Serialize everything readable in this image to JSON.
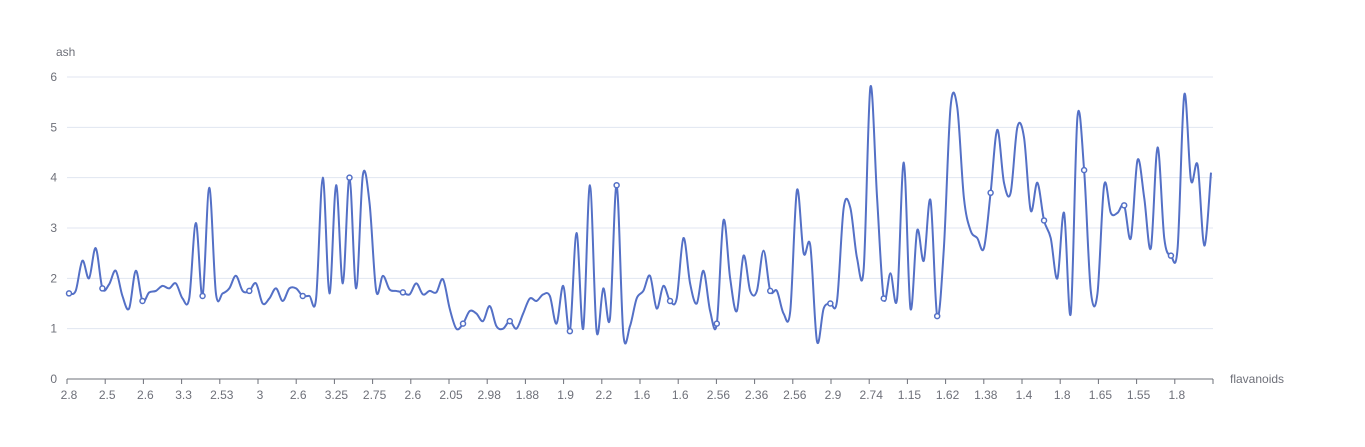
{
  "chart_data": {
    "type": "line",
    "smooth": true,
    "xlabel": "flavanoids",
    "ylabel": "ash",
    "ylim": [
      0,
      6
    ],
    "y_ticks": [
      0,
      1,
      2,
      3,
      4,
      5,
      6
    ],
    "x_tick_labels": [
      "2.8",
      "2.5",
      "2.6",
      "3.3",
      "2.53",
      "3",
      "2.6",
      "3.25",
      "2.75",
      "2.6",
      "2.05",
      "2.98",
      "1.88",
      "1.9",
      "2.2",
      "1.6",
      "1.6",
      "2.56",
      "2.36",
      "2.56",
      "2.9",
      "2.74",
      "1.15",
      "1.62",
      "1.38",
      "1.4",
      "1.8",
      "1.65",
      "1.55",
      "1.8"
    ],
    "grid": true,
    "colors": {
      "series": "#5470c6",
      "grid": "#e0e6f1",
      "axis": "#6e7079"
    },
    "series": [
      {
        "values": [
          1.7,
          1.75,
          2.35,
          2.0,
          2.6,
          1.8,
          1.88,
          2.15,
          1.65,
          1.4,
          2.15,
          1.55,
          1.72,
          1.75,
          1.85,
          1.8,
          1.9,
          1.6,
          1.6,
          3.1,
          1.65,
          3.8,
          1.7,
          1.7,
          1.8,
          2.05,
          1.75,
          1.75,
          1.9,
          1.5,
          1.6,
          1.8,
          1.55,
          1.8,
          1.8,
          1.65,
          1.65,
          1.6,
          4.0,
          1.7,
          3.85,
          1.9,
          4.0,
          1.8,
          4.05,
          3.5,
          1.75,
          2.05,
          1.78,
          1.75,
          1.72,
          1.68,
          1.9,
          1.68,
          1.75,
          1.72,
          1.98,
          1.4,
          1.0,
          1.1,
          1.35,
          1.3,
          1.15,
          1.45,
          1.05,
          1.0,
          1.15,
          1.0,
          1.3,
          1.6,
          1.55,
          1.68,
          1.65,
          1.1,
          1.85,
          0.95,
          2.9,
          1.0,
          3.85,
          0.95,
          1.8,
          1.2,
          3.85,
          0.9,
          1.05,
          1.6,
          1.75,
          2.05,
          1.4,
          1.85,
          1.55,
          1.6,
          2.8,
          1.9,
          1.5,
          2.15,
          1.35,
          1.1,
          3.15,
          2.0,
          1.35,
          2.45,
          1.75,
          1.75,
          2.55,
          1.75,
          1.75,
          1.3,
          1.35,
          3.75,
          2.5,
          2.65,
          0.75,
          1.4,
          1.5,
          1.55,
          3.4,
          3.4,
          2.4,
          2.2,
          5.8,
          3.6,
          1.6,
          2.1,
          1.6,
          4.3,
          1.4,
          2.95,
          2.35,
          3.55,
          1.25,
          2.6,
          5.4,
          5.4,
          3.6,
          2.95,
          2.8,
          2.6,
          3.7,
          4.95,
          3.9,
          3.7,
          5.0,
          4.8,
          3.35,
          3.9,
          3.15,
          2.8,
          2.0,
          3.3,
          1.3,
          5.2,
          4.15,
          1.75,
          1.7,
          3.85,
          3.3,
          3.3,
          3.45,
          2.8,
          4.35,
          3.6,
          2.6,
          4.6,
          2.8,
          2.45,
          2.6,
          5.65,
          3.95,
          4.25,
          2.65,
          4.1
        ],
        "marked_points": [
          0,
          5,
          11,
          20,
          27,
          35,
          42,
          50,
          59,
          66,
          75,
          82,
          90,
          97,
          105,
          114,
          122,
          130,
          138,
          146,
          152,
          158,
          165,
          172
        ]
      }
    ]
  }
}
